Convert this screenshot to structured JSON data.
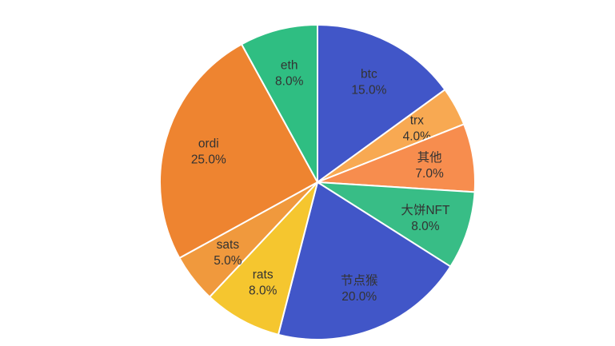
{
  "chart_data": {
    "type": "pie",
    "title": "",
    "labels": [
      "btc",
      "trx",
      "其他",
      "大饼NFT",
      "节点猴",
      "rats",
      "sats",
      "ordi",
      "eth"
    ],
    "values": [
      15.0,
      4.0,
      7.0,
      8.0,
      20.0,
      8.0,
      5.0,
      25.0,
      8.0
    ],
    "display_labels": [
      "btc 15.0%",
      "trx 4.0%",
      "其他 7.0%",
      "大饼NFT 8.0%",
      "节点猴 20.0%",
      "rats 8.0%",
      "sats 5.0%",
      "ordi 25.0%",
      "eth 8.0%"
    ],
    "colors": [
      "#4156c8",
      "#f8a952",
      "#f78d4e",
      "#38bd86",
      "#4156c8",
      "#f5c62f",
      "#f0993d",
      "#ee8430",
      "#2fbe82"
    ],
    "start_angle_deg": 0,
    "direction": "clockwise",
    "stroke_color": "#ffffff",
    "label_color": "#333333",
    "background": "#ffffff",
    "legend_position": "none",
    "value_suffix": "%"
  }
}
